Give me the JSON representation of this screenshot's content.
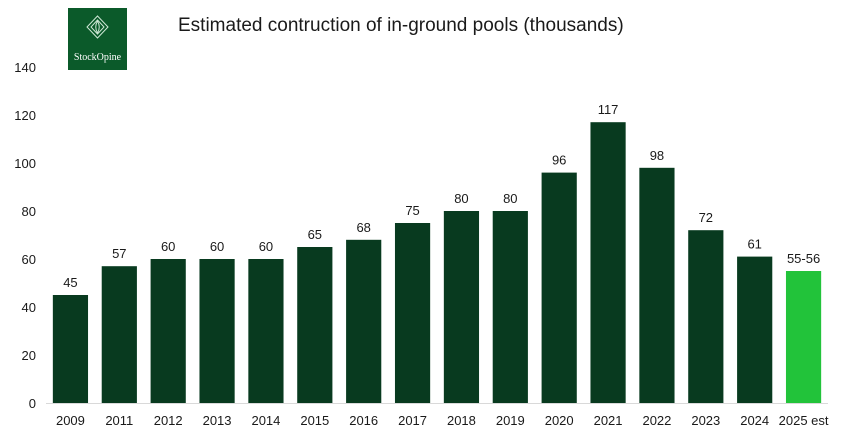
{
  "logo": {
    "text": "StockOpine",
    "bg": "#0b5a2a",
    "icon": "diamond-leaf-icon"
  },
  "chart_data": {
    "type": "bar",
    "title": "Estimated contruction of in-ground pools (thousands)",
    "xlabel": "",
    "ylabel": "",
    "ylim": [
      0,
      140
    ],
    "yticks": [
      0,
      20,
      40,
      60,
      80,
      100,
      120,
      140
    ],
    "grid": false,
    "categories": [
      "2009",
      "2011",
      "2012",
      "2013",
      "2014",
      "2015",
      "2016",
      "2017",
      "2018",
      "2019",
      "2020",
      "2021",
      "2022",
      "2023",
      "2024",
      "2025 est"
    ],
    "values": [
      45,
      57,
      60,
      60,
      60,
      65,
      68,
      75,
      80,
      80,
      96,
      117,
      98,
      72,
      61,
      55
    ],
    "data_labels": [
      "45",
      "57",
      "60",
      "60",
      "60",
      "65",
      "68",
      "75",
      "80",
      "80",
      "96",
      "117",
      "98",
      "72",
      "61",
      "55-56"
    ],
    "colors": {
      "bar": "#083a1f",
      "highlight": "#22c33a"
    },
    "highlight_index": 15
  }
}
